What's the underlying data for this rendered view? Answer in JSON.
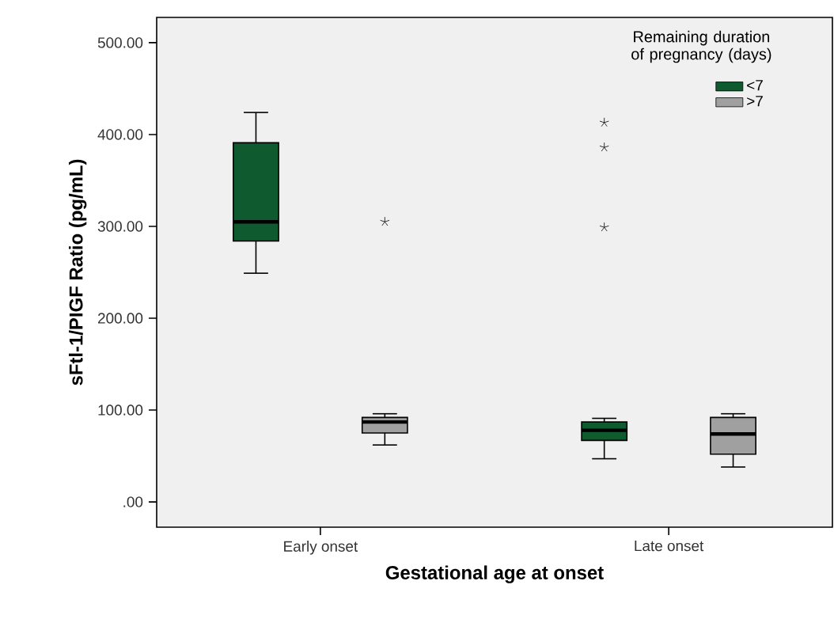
{
  "chart_data": {
    "type": "box",
    "xlabel": "Gestational age at onset",
    "ylabel": "sFtl-1/PIGF Ratio (pg/mL)",
    "legend_title": "Remaining duration of pregnancy (days)",
    "categories": [
      "Early onset",
      "Late onset"
    ],
    "series": [
      {
        "name": "<7",
        "color": "#0f5a2e",
        "boxes": [
          {
            "low": 249,
            "q1": 284,
            "median": 305,
            "q3": 391,
            "high": 424
          },
          {
            "low": 47,
            "q1": 67,
            "median": 78,
            "q3": 87,
            "high": 91,
            "outliers": [
              413,
              386,
              299
            ]
          }
        ]
      },
      {
        "name": ">7",
        "color": "#a0a0a0",
        "boxes": [
          {
            "low": 62,
            "q1": 75,
            "median": 87,
            "q3": 92,
            "high": 96,
            "outliers": [
              305
            ]
          },
          {
            "low": 38,
            "q1": 52,
            "median": 74,
            "q3": 92,
            "high": 96
          }
        ]
      }
    ],
    "ylim": [
      -27.5,
      527.5
    ],
    "yticks": [
      {
        "value": 0,
        "label": ".00"
      },
      {
        "value": 100,
        "label": "100.00"
      },
      {
        "value": 200,
        "label": "200.00"
      },
      {
        "value": 300,
        "label": "300.00"
      },
      {
        "value": 400,
        "label": "400.00"
      },
      {
        "value": 500,
        "label": "500.00"
      }
    ],
    "marker": "star",
    "legend": "top right",
    "grid": false
  }
}
